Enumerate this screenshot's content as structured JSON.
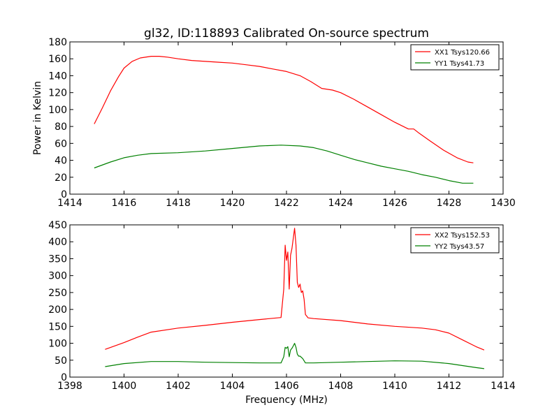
{
  "figure_title": "gl32, ID:118893 Calibrated On-source spectrum",
  "chart_data": [
    {
      "type": "line",
      "title": "gl32, ID:118893 Calibrated On-source spectrum",
      "xlabel": "",
      "ylabel": "Power in Kelvin",
      "xlim": [
        1414,
        1430
      ],
      "ylim": [
        0,
        180
      ],
      "xticks": [
        "1414",
        "1416",
        "1418",
        "1420",
        "1422",
        "1424",
        "1426",
        "1428",
        "1430"
      ],
      "yticks": [
        "0",
        "20",
        "40",
        "60",
        "80",
        "100",
        "120",
        "140",
        "160",
        "180"
      ],
      "legend_position": "top-right",
      "grid": false,
      "series": [
        {
          "name": "XX1 Tsys120.66",
          "color": "#ff0000",
          "x": [
            1414.9,
            1415.2,
            1415.5,
            1415.8,
            1416.0,
            1416.3,
            1416.6,
            1417.0,
            1417.3,
            1417.6,
            1418.0,
            1418.5,
            1419.0,
            1419.5,
            1420.0,
            1420.5,
            1421.0,
            1421.5,
            1422.0,
            1422.5,
            1422.9,
            1423.3,
            1423.7,
            1424.0,
            1424.5,
            1425.0,
            1425.5,
            1426.0,
            1426.5,
            1426.7,
            1426.9,
            1427.3,
            1427.8,
            1428.3,
            1428.7,
            1428.9
          ],
          "y": [
            83,
            102,
            122,
            139,
            149,
            157,
            161,
            163,
            163,
            162,
            160,
            158,
            157,
            156,
            155,
            153,
            151,
            148,
            145,
            140,
            133,
            125,
            123,
            120,
            112,
            103,
            94,
            85,
            77,
            77,
            72,
            63,
            52,
            43,
            38,
            37
          ]
        },
        {
          "name": "YY1 Tsys41.73",
          "color": "#008000",
          "x": [
            1414.9,
            1415.5,
            1416.0,
            1416.5,
            1417.0,
            1418.0,
            1419.0,
            1420.0,
            1421.0,
            1421.8,
            1422.5,
            1423.0,
            1423.5,
            1424.0,
            1424.5,
            1425.0,
            1425.5,
            1426.0,
            1426.5,
            1427.0,
            1427.5,
            1428.0,
            1428.5,
            1428.9
          ],
          "y": [
            31,
            38,
            43,
            46,
            48,
            49,
            51,
            54,
            57,
            58,
            57,
            55,
            51,
            46,
            41,
            37,
            33,
            30,
            27,
            23,
            20,
            16,
            13,
            13
          ]
        }
      ]
    },
    {
      "type": "line",
      "title": "",
      "xlabel": "Frequency (MHz)",
      "ylabel": "",
      "xlim": [
        1398,
        1414
      ],
      "ylim": [
        0,
        450
      ],
      "xticks": [
        "1398",
        "1400",
        "1402",
        "1404",
        "1406",
        "1408",
        "1410",
        "1412",
        "1414"
      ],
      "yticks": [
        "0",
        "50",
        "100",
        "150",
        "200",
        "250",
        "300",
        "350",
        "400",
        "450"
      ],
      "legend_position": "top-right",
      "grid": false,
      "series": [
        {
          "name": "XX2 Tsys152.53",
          "color": "#ff0000",
          "x": [
            1399.3,
            1400.0,
            1400.5,
            1401.0,
            1402.0,
            1403.0,
            1404.0,
            1405.0,
            1405.8,
            1405.9,
            1405.95,
            1406.0,
            1406.05,
            1406.1,
            1406.15,
            1406.2,
            1406.25,
            1406.3,
            1406.35,
            1406.4,
            1406.45,
            1406.5,
            1406.55,
            1406.6,
            1406.65,
            1406.7,
            1406.8,
            1407.0,
            1408.0,
            1409.0,
            1410.0,
            1411.0,
            1411.5,
            1412.0,
            1412.5,
            1413.0,
            1413.3
          ],
          "y": [
            82,
            102,
            118,
            133,
            145,
            153,
            162,
            170,
            176,
            260,
            390,
            345,
            370,
            260,
            360,
            380,
            410,
            440,
            390,
            280,
            265,
            275,
            250,
            255,
            230,
            185,
            175,
            173,
            167,
            157,
            150,
            145,
            140,
            130,
            110,
            90,
            80
          ]
        },
        {
          "name": "YY2 Tsys43.57",
          "color": "#008000",
          "x": [
            1399.3,
            1400.0,
            1401.0,
            1402.0,
            1403.0,
            1404.0,
            1405.0,
            1405.8,
            1405.9,
            1405.95,
            1406.0,
            1406.05,
            1406.1,
            1406.15,
            1406.2,
            1406.25,
            1406.3,
            1406.35,
            1406.4,
            1406.45,
            1406.5,
            1406.6,
            1406.7,
            1407.0,
            1408.0,
            1409.0,
            1410.0,
            1411.0,
            1412.0,
            1412.5,
            1413.0,
            1413.3
          ],
          "y": [
            31,
            40,
            46,
            46,
            44,
            43,
            42,
            42,
            60,
            88,
            85,
            90,
            60,
            80,
            85,
            92,
            100,
            88,
            68,
            62,
            62,
            55,
            42,
            42,
            44,
            46,
            48,
            47,
            40,
            34,
            28,
            25
          ]
        }
      ]
    }
  ]
}
